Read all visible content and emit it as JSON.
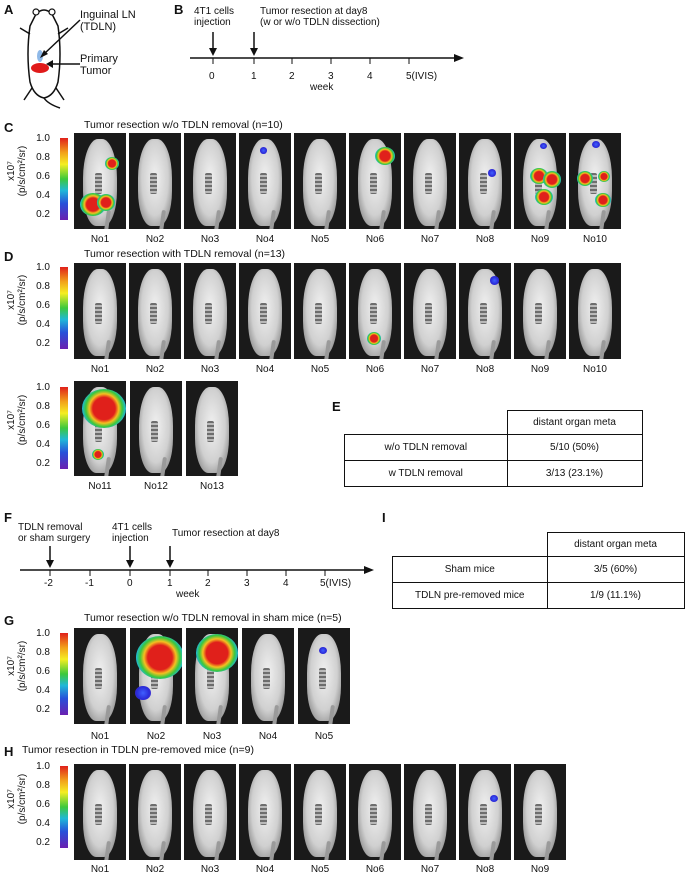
{
  "panelA": {
    "letter": "A",
    "ln_label": "Inguinal LN",
    "ln_label2": "(TDLN)",
    "tumor_label": "Primary",
    "tumor_label2": "Tumor"
  },
  "panelB": {
    "letter": "B",
    "event1": "4T1 cells",
    "event1b": "injection",
    "event2": "Tumor resection at day8",
    "event2b": "(w or w/o TDLN dissection)",
    "ticks": [
      "0",
      "1",
      "2",
      "3",
      "4",
      "5(IVIS)"
    ],
    "unit": "week"
  },
  "colorbar": {
    "ticks": [
      "1.0",
      "0.8",
      "0.6",
      "0.4",
      "0.2"
    ],
    "unit_line1": "x10⁷",
    "unit_line2": "(p/s/cm²/sr)"
  },
  "panelC": {
    "letter": "C",
    "title": "Tumor resection w/o TDLN removal (n=10)",
    "mice": [
      "No1",
      "No2",
      "No3",
      "No4",
      "No5",
      "No6",
      "No7",
      "No8",
      "No9",
      "No10"
    ]
  },
  "panelD": {
    "letter": "D",
    "title": "Tumor resection with TDLN removal (n=13)",
    "mice": [
      "No1",
      "No2",
      "No3",
      "No4",
      "No5",
      "No6",
      "No7",
      "No8",
      "No9",
      "No10",
      "No11",
      "No12",
      "No13"
    ]
  },
  "panelE": {
    "letter": "E",
    "header": "distant organ meta",
    "rows": [
      {
        "label": "w/o TDLN removal",
        "value": "5/10 (50%)"
      },
      {
        "label": "w TDLN removal",
        "value": "3/13 (23.1%)"
      }
    ]
  },
  "panelF": {
    "letter": "F",
    "event0": "TDLN removal",
    "event0b": "or sham surgery",
    "event1": "4T1 cells",
    "event1b": "injection",
    "event2": "Tumor resection at day8",
    "ticks": [
      "-2",
      "-1",
      "0",
      "1",
      "2",
      "3",
      "4",
      "5(IVIS)"
    ],
    "unit": "week"
  },
  "panelG": {
    "letter": "G",
    "title": "Tumor resection w/o TDLN removal in sham mice (n=5)",
    "mice": [
      "No1",
      "No2",
      "No3",
      "No4",
      "No5"
    ]
  },
  "panelH": {
    "letter": "H",
    "title": "Tumor resection in TDLN pre-removed mice (n=9)",
    "mice": [
      "No1",
      "No2",
      "No3",
      "No4",
      "No5",
      "No6",
      "No7",
      "No8",
      "No9"
    ]
  },
  "panelI": {
    "letter": "I",
    "header": "distant organ meta",
    "rows": [
      {
        "label": "Sham mice",
        "value": "3/5 (60%)"
      },
      {
        "label": "TDLN pre-removed mice",
        "value": "1/9 (11.1%)"
      }
    ]
  }
}
